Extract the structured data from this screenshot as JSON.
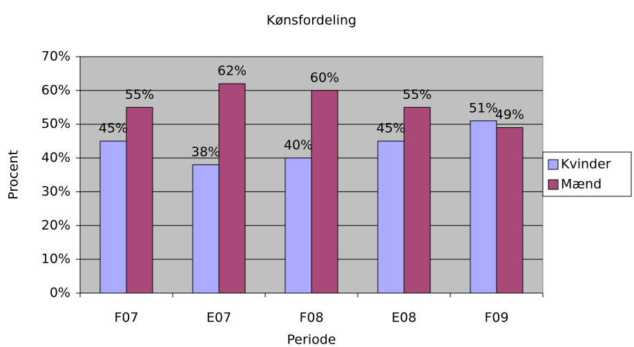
{
  "chart_data": {
    "type": "bar",
    "title": "Kønsfordeling",
    "x_label": "Periode",
    "y_label": "Procent",
    "categories": [
      "F07",
      "E07",
      "F08",
      "E08",
      "F09"
    ],
    "series": [
      {
        "name": "Kvinder",
        "color": "#aaaaff",
        "values": [
          45,
          38,
          40,
          45,
          51
        ],
        "value_labels": [
          "45%",
          "38%",
          "40%",
          "45%",
          "51%"
        ]
      },
      {
        "name": "Mænd",
        "color": "#a8497a",
        "values": [
          55,
          62,
          60,
          55,
          49
        ],
        "value_labels": [
          "55%",
          "62%",
          "60%",
          "55%",
          "49%"
        ]
      }
    ],
    "ylim": [
      0,
      70
    ],
    "yticks": [
      {
        "value": 0,
        "label": "0%"
      },
      {
        "value": 10,
        "label": "10%"
      },
      {
        "value": 20,
        "label": "20%"
      },
      {
        "value": 30,
        "label": "30%"
      },
      {
        "value": 40,
        "label": "40%"
      },
      {
        "value": 50,
        "label": "50%"
      },
      {
        "value": 60,
        "label": "60%"
      },
      {
        "value": 70,
        "label": "70%"
      }
    ],
    "grid": true,
    "legend": "right"
  }
}
